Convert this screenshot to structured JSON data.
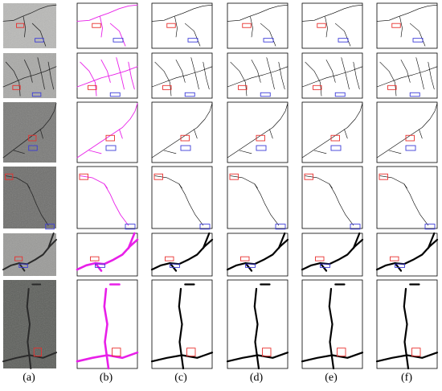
{
  "figure": {
    "column_labels": [
      "(a)",
      "(b)",
      "(c)",
      "(d)",
      "(e)",
      "(f)"
    ]
  },
  "columns": [
    {
      "key": "a",
      "kind": "photo"
    },
    {
      "key": "b",
      "kind": "overlay",
      "crack_color": "#e81fe8"
    },
    {
      "key": "c",
      "kind": "map",
      "crack_color": "#000000"
    },
    {
      "key": "d",
      "kind": "map",
      "crack_color": "#000000"
    },
    {
      "key": "e",
      "kind": "map",
      "crack_color": "#000000"
    },
    {
      "key": "f",
      "kind": "map",
      "crack_color": "#000000"
    }
  ],
  "rows": [
    {
      "photo_tone": "#b9b9b7",
      "weight": "thin",
      "boxes": [
        "red",
        "blue"
      ]
    },
    {
      "photo_tone": "#a9a9a7",
      "weight": "thin",
      "boxes": [
        "red",
        "blue"
      ]
    },
    {
      "photo_tone": "#7a7a78",
      "weight": "thin",
      "boxes": [
        "red",
        "blue"
      ]
    },
    {
      "photo_tone": "#6e6e6c",
      "weight": "thin",
      "boxes": [
        "red",
        "blue"
      ]
    },
    {
      "photo_tone": "#9a9a98",
      "weight": "thick",
      "boxes": [
        "red",
        "blue"
      ]
    },
    {
      "photo_tone": "#5c5e5a",
      "weight": "thick",
      "boxes": [
        "red"
      ]
    }
  ],
  "colors": {
    "box_red": "#e8302e",
    "box_blue": "#3c3cd8",
    "crack_dark": "#2a2a2a",
    "panel_border": "#000000"
  }
}
